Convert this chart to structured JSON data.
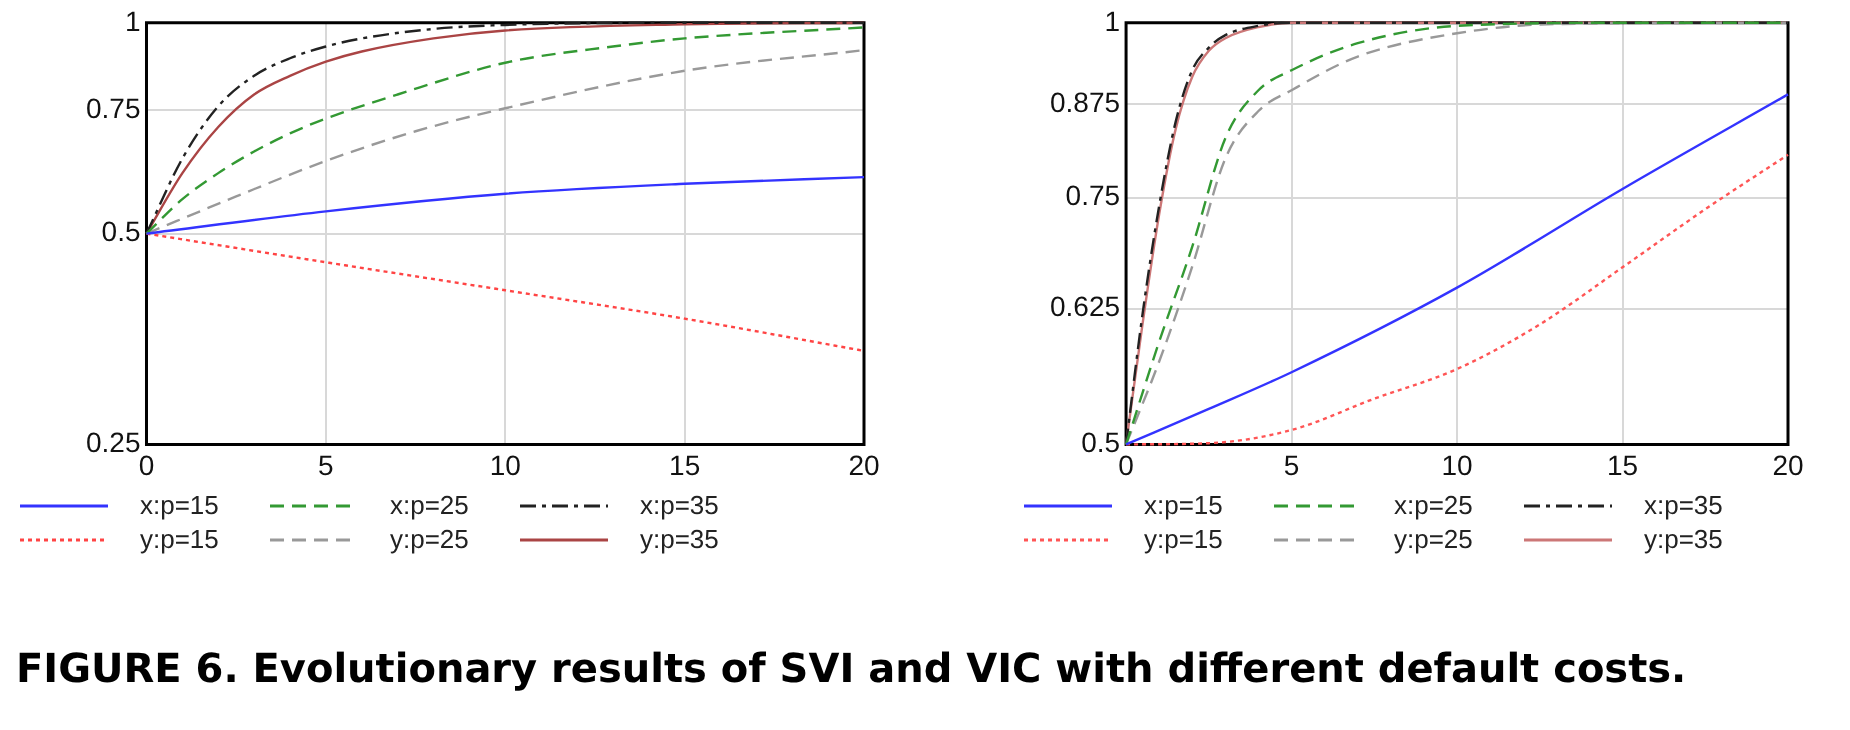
{
  "chart_data": [
    {
      "type": "line",
      "log": "y",
      "grid": true,
      "legend": "bottom",
      "marker": "none",
      "xlim": [
        0,
        20
      ],
      "xticks": [
        0,
        5,
        10,
        15,
        20
      ],
      "ylim": [
        0.25,
        1
      ],
      "yticks": [
        0.25,
        0.5,
        0.75,
        1
      ],
      "annotations": [
        "FIGURE 6.  Evolutionary results of SVI and VIC with different default costs."
      ],
      "series": [
        {
          "name": "x:p=15",
          "color": "#3333ff",
          "line_style": "solid",
          "x": [
            0,
            5,
            10,
            15,
            20
          ],
          "values": [
            0.5,
            0.538,
            0.57,
            0.589,
            0.602
          ]
        },
        {
          "name": "x:p=25",
          "color": "#339933",
          "line_style": "dashed",
          "x": [
            0,
            1,
            2,
            3,
            4,
            5,
            7,
            10,
            13,
            15,
            20
          ],
          "values": [
            0.5,
            0.56,
            0.61,
            0.655,
            0.695,
            0.73,
            0.79,
            0.877,
            0.925,
            0.95,
            0.985
          ]
        },
        {
          "name": "x:p=35",
          "color": "#222222",
          "line_style": "dashdot",
          "x": [
            0,
            1,
            2,
            3,
            4,
            5,
            6,
            8,
            10,
            15,
            20
          ],
          "values": [
            0.5,
            0.64,
            0.76,
            0.84,
            0.89,
            0.925,
            0.95,
            0.98,
            0.993,
            1,
            1
          ]
        },
        {
          "name": "y:p=15",
          "color": "#ff4444",
          "line_style": "dotted",
          "x": [
            0,
            5,
            10,
            15,
            20
          ],
          "values": [
            0.5,
            0.455,
            0.415,
            0.378,
            0.34
          ]
        },
        {
          "name": "y:p=25",
          "color": "#999999",
          "line_style": "dashed",
          "x": [
            0,
            2.5,
            5,
            7.5,
            10,
            15,
            20
          ],
          "values": [
            0.5,
            0.565,
            0.635,
            0.7,
            0.755,
            0.854,
            0.914
          ]
        },
        {
          "name": "y:p=35",
          "color": "#aa4444",
          "line_style": "solid",
          "x": [
            0,
            1,
            2,
            3,
            4,
            5,
            6,
            8,
            10,
            15,
            20
          ],
          "values": [
            0.5,
            0.61,
            0.71,
            0.79,
            0.84,
            0.88,
            0.91,
            0.95,
            0.975,
            0.995,
            1
          ]
        }
      ]
    },
    {
      "type": "line",
      "log": "y",
      "grid": true,
      "legend": "bottom",
      "marker": "none",
      "xlim": [
        0,
        20
      ],
      "xticks": [
        0,
        5,
        10,
        15,
        20
      ],
      "ylim": [
        0.5,
        1
      ],
      "yticks": [
        0.5,
        0.625,
        0.75,
        0.875,
        1
      ],
      "series": [
        {
          "name": "x:p=15",
          "color": "#3333ff",
          "line_style": "solid",
          "x": [
            0,
            2.5,
            5,
            10,
            15,
            20
          ],
          "values": [
            0.5,
            0.53,
            0.563,
            0.647,
            0.761,
            0.889
          ]
        },
        {
          "name": "x:p=25",
          "color": "#339933",
          "line_style": "dashed",
          "x": [
            0,
            1,
            2,
            3,
            4,
            5,
            7,
            10,
            15,
            20
          ],
          "values": [
            0.5,
            0.592,
            0.692,
            0.827,
            0.895,
            0.925,
            0.967,
            0.995,
            1,
            1
          ]
        },
        {
          "name": "x:p=35",
          "color": "#222222",
          "line_style": "dashdot",
          "x": [
            0,
            0.5,
            1,
            1.5,
            2,
            2.5,
            3,
            4,
            5,
            20
          ],
          "values": [
            0.5,
            0.62,
            0.74,
            0.85,
            0.925,
            0.96,
            0.98,
            0.995,
            1,
            1
          ]
        },
        {
          "name": "y:p=15",
          "color": "#ff5555",
          "line_style": "dotted",
          "x": [
            0,
            2.5,
            5,
            7.5,
            10,
            12.5,
            15,
            17.5,
            20
          ],
          "values": [
            0.5,
            0.501,
            0.512,
            0.539,
            0.566,
            0.609,
            0.669,
            0.736,
            0.805
          ]
        },
        {
          "name": "y:p=25",
          "color": "#999999",
          "line_style": "dashed",
          "x": [
            0,
            1,
            2,
            3,
            4,
            5,
            7,
            10,
            13,
            20
          ],
          "values": [
            0.5,
            0.573,
            0.67,
            0.8,
            0.865,
            0.895,
            0.946,
            0.983,
            0.998,
            1
          ]
        },
        {
          "name": "y:p=35",
          "color": "#cc7777",
          "line_style": "solid",
          "x": [
            0,
            0.5,
            1,
            1.5,
            2,
            2.5,
            3,
            4,
            5,
            20
          ],
          "values": [
            0.5,
            0.61,
            0.73,
            0.84,
            0.915,
            0.955,
            0.975,
            0.993,
            1,
            1
          ]
        }
      ]
    }
  ]
}
